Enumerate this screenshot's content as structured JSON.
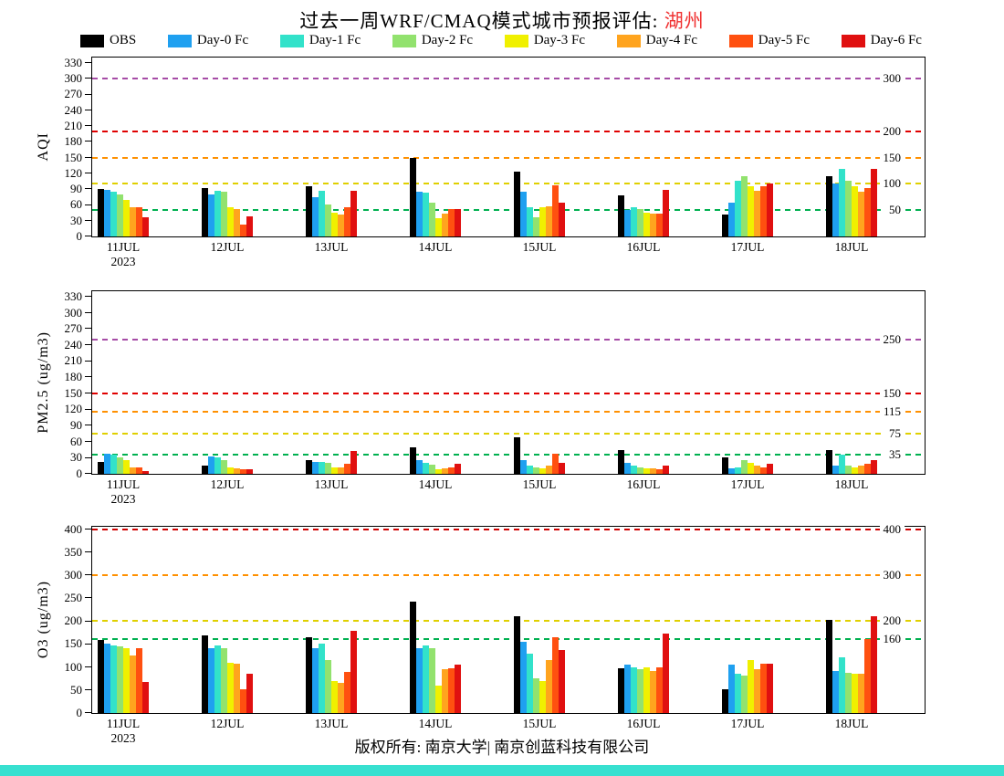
{
  "title": {
    "main": "过去一周WRF/CMAQ模式城市预报评估:",
    "city": "湖州"
  },
  "footer": {
    "copyright": "版权所有: 南京大学| 南京创蓝科技有限公司"
  },
  "year_note": "2023",
  "accent_colors": {
    "title_city": "#F03030",
    "bottom_strip": "#38E0D0"
  },
  "legend": [
    {
      "label": "OBS",
      "color": "#000000"
    },
    {
      "label": "Day-0 Fc",
      "color": "#1FA0F0"
    },
    {
      "label": "Day-1 Fc",
      "color": "#32E2CA"
    },
    {
      "label": "Day-2 Fc",
      "color": "#92E26E"
    },
    {
      "label": "Day-3 Fc",
      "color": "#F0F000"
    },
    {
      "label": "Day-4 Fc",
      "color": "#FFA41E"
    },
    {
      "label": "Day-5 Fc",
      "color": "#FF5010"
    },
    {
      "label": "Day-6 Fc",
      "color": "#E01010"
    }
  ],
  "chart_data": [
    {
      "type": "bar",
      "name": "AQI",
      "ylabel": "AQI",
      "xlabel": "",
      "ylim": [
        0,
        340
      ],
      "yticks": [
        0,
        30,
        60,
        90,
        120,
        150,
        180,
        210,
        240,
        270,
        300,
        330
      ],
      "grid": false,
      "legend_position": "top",
      "categories": [
        "11JUL",
        "12JUL",
        "13JUL",
        "14JUL",
        "15JUL",
        "16JUL",
        "17JUL",
        "18JUL"
      ],
      "series": [
        {
          "name": "OBS",
          "values": [
            90,
            92,
            95,
            150,
            123,
            78,
            42,
            115
          ]
        },
        {
          "name": "Day-0 Fc",
          "values": [
            88,
            80,
            75,
            85,
            85,
            50,
            65,
            100
          ]
        },
        {
          "name": "Day-1 Fc",
          "values": [
            85,
            86,
            87,
            84,
            55,
            56,
            105,
            128
          ]
        },
        {
          "name": "Day-2 Fc",
          "values": [
            80,
            85,
            60,
            65,
            37,
            52,
            115,
            105
          ]
        },
        {
          "name": "Day-3 Fc",
          "values": [
            70,
            55,
            45,
            35,
            55,
            45,
            95,
            95
          ]
        },
        {
          "name": "Day-4 Fc",
          "values": [
            55,
            52,
            42,
            44,
            57,
            44,
            87,
            85
          ]
        },
        {
          "name": "Day-5 Fc",
          "values": [
            55,
            22,
            55,
            52,
            97,
            44,
            95,
            92
          ]
        },
        {
          "name": "Day-6 Fc",
          "values": [
            37,
            38,
            87,
            52,
            65,
            88,
            100,
            128
          ]
        }
      ],
      "ref_lines": [
        {
          "value": 50,
          "label": "50",
          "color": "#00B050"
        },
        {
          "value": 100,
          "label": "100",
          "color": "#E0D000"
        },
        {
          "value": 150,
          "label": "150",
          "color": "#FF9000"
        },
        {
          "value": 200,
          "label": "200",
          "color": "#E00000"
        },
        {
          "value": 300,
          "label": "300",
          "color": "#A64CA6"
        }
      ]
    },
    {
      "type": "bar",
      "name": "PM2.5",
      "ylabel": "PM2.5 (ug/m3)",
      "xlabel": "",
      "ylim": [
        0,
        340
      ],
      "yticks": [
        0,
        30,
        60,
        90,
        120,
        150,
        180,
        210,
        240,
        270,
        300,
        330
      ],
      "grid": false,
      "legend_position": "top",
      "categories": [
        "11JUL",
        "12JUL",
        "13JUL",
        "14JUL",
        "15JUL",
        "16JUL",
        "17JUL",
        "18JUL"
      ],
      "series": [
        {
          "name": "OBS",
          "values": [
            22,
            15,
            25,
            50,
            68,
            45,
            30,
            45
          ]
        },
        {
          "name": "Day-0 Fc",
          "values": [
            38,
            32,
            22,
            25,
            25,
            20,
            10,
            15
          ]
        },
        {
          "name": "Day-1 Fc",
          "values": [
            36,
            30,
            22,
            20,
            15,
            15,
            12,
            35
          ]
        },
        {
          "name": "Day-2 Fc",
          "values": [
            30,
            25,
            20,
            17,
            12,
            12,
            25,
            15
          ]
        },
        {
          "name": "Day-3 Fc",
          "values": [
            25,
            12,
            12,
            8,
            10,
            10,
            20,
            12
          ]
        },
        {
          "name": "Day-4 Fc",
          "values": [
            12,
            10,
            12,
            10,
            15,
            10,
            15,
            15
          ]
        },
        {
          "name": "Day-5 Fc",
          "values": [
            12,
            8,
            18,
            12,
            38,
            8,
            12,
            18
          ]
        },
        {
          "name": "Day-6 Fc",
          "values": [
            5,
            8,
            42,
            18,
            20,
            15,
            18,
            25
          ]
        }
      ],
      "ref_lines": [
        {
          "value": 35,
          "label": "35",
          "color": "#00B050"
        },
        {
          "value": 75,
          "label": "75",
          "color": "#E0D000"
        },
        {
          "value": 115,
          "label": "115",
          "color": "#FF9000"
        },
        {
          "value": 150,
          "label": "150",
          "color": "#E00000"
        },
        {
          "value": 250,
          "label": "250",
          "color": "#A64CA6"
        }
      ]
    },
    {
      "type": "bar",
      "name": "O3",
      "ylabel": "O3 (ug/m3)",
      "xlabel": "",
      "ylim": [
        0,
        405
      ],
      "yticks": [
        0,
        50,
        100,
        150,
        200,
        250,
        300,
        350,
        400
      ],
      "grid": false,
      "legend_position": "top",
      "categories": [
        "11JUL",
        "12JUL",
        "13JUL",
        "14JUL",
        "15JUL",
        "16JUL",
        "17JUL",
        "18JUL"
      ],
      "series": [
        {
          "name": "OBS",
          "values": [
            158,
            168,
            165,
            242,
            210,
            98,
            52,
            202
          ]
        },
        {
          "name": "Day-0 Fc",
          "values": [
            150,
            140,
            140,
            140,
            155,
            105,
            105,
            92
          ]
        },
        {
          "name": "Day-1 Fc",
          "values": [
            146,
            146,
            150,
            146,
            130,
            100,
            85,
            122
          ]
        },
        {
          "name": "Day-2 Fc",
          "values": [
            145,
            140,
            115,
            140,
            75,
            95,
            82,
            88
          ]
        },
        {
          "name": "Day-3 Fc",
          "values": [
            140,
            110,
            70,
            60,
            70,
            100,
            115,
            85
          ]
        },
        {
          "name": "Day-4 Fc",
          "values": [
            125,
            108,
            65,
            95,
            115,
            92,
            95,
            85
          ]
        },
        {
          "name": "Day-5 Fc",
          "values": [
            140,
            52,
            90,
            98,
            165,
            100,
            108,
            160
          ]
        },
        {
          "name": "Day-6 Fc",
          "values": [
            68,
            85,
            178,
            105,
            138,
            172,
            108,
            210
          ]
        }
      ],
      "ref_lines": [
        {
          "value": 160,
          "label": "160",
          "color": "#00B050"
        },
        {
          "value": 200,
          "label": "200",
          "color": "#E0D000"
        },
        {
          "value": 300,
          "label": "300",
          "color": "#FF9000"
        },
        {
          "value": 400,
          "label": "400",
          "color": "#D00000"
        }
      ]
    }
  ]
}
